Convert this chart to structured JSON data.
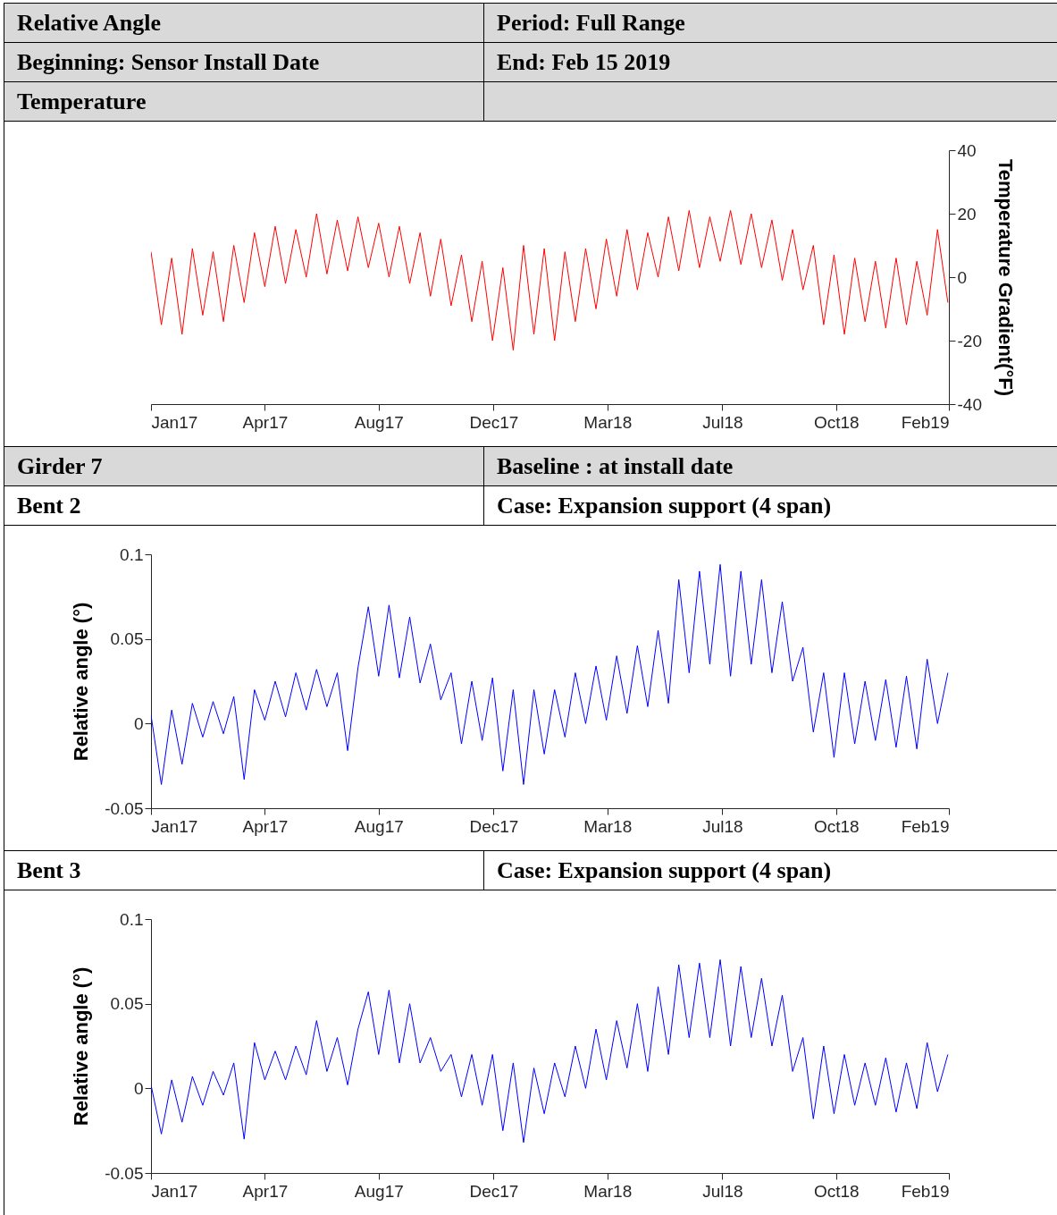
{
  "chart_data": [
    {
      "type": "line",
      "title": "Temperature",
      "annotations": [
        "Relative Angle",
        "Period: Full Range",
        "Beginning: Sensor Install Date",
        "End: Feb 15 2019"
      ],
      "y2label": "Temperature Gradient(°F)",
      "xlim": [
        "2017-01-05",
        "2019-02-15"
      ],
      "xticks": [
        {
          "value": "2017-01-05",
          "label": "Jan17"
        },
        {
          "value": "2017-04-25",
          "label": "Apr17"
        },
        {
          "value": "2017-08-13",
          "label": "Aug17"
        },
        {
          "value": "2017-12-02",
          "label": "Dec17"
        },
        {
          "value": "2018-03-22",
          "label": "Mar18"
        },
        {
          "value": "2018-07-11",
          "label": "Jul18"
        },
        {
          "value": "2018-10-29",
          "label": "Oct18"
        },
        {
          "value": "2019-02-15",
          "label": "Feb19"
        }
      ],
      "y2lim": [
        -40,
        40
      ],
      "y2ticks": [
        -40,
        -20,
        0,
        20,
        40
      ],
      "x": [
        "2017-01-05",
        "2017-01-15",
        "2017-01-25",
        "2017-02-04",
        "2017-02-14",
        "2017-02-24",
        "2017-03-06",
        "2017-03-16",
        "2017-03-26",
        "2017-04-05",
        "2017-04-15",
        "2017-04-25",
        "2017-05-05",
        "2017-05-15",
        "2017-05-25",
        "2017-06-04",
        "2017-06-14",
        "2017-06-24",
        "2017-07-04",
        "2017-07-14",
        "2017-07-24",
        "2017-08-03",
        "2017-08-13",
        "2017-08-23",
        "2017-09-02",
        "2017-09-12",
        "2017-09-22",
        "2017-10-02",
        "2017-10-12",
        "2017-10-22",
        "2017-11-01",
        "2017-11-11",
        "2017-11-21",
        "2017-12-01",
        "2017-12-11",
        "2017-12-21",
        "2017-12-31",
        "2018-01-10",
        "2018-01-20",
        "2018-01-30",
        "2018-02-09",
        "2018-02-19",
        "2018-03-01",
        "2018-03-11",
        "2018-03-21",
        "2018-03-31",
        "2018-04-10",
        "2018-04-20",
        "2018-04-30",
        "2018-05-10",
        "2018-05-20",
        "2018-05-30",
        "2018-06-09",
        "2018-06-19",
        "2018-06-29",
        "2018-07-09",
        "2018-07-19",
        "2018-07-29",
        "2018-08-08",
        "2018-08-18",
        "2018-08-28",
        "2018-09-07",
        "2018-09-17",
        "2018-09-27",
        "2018-10-07",
        "2018-10-17",
        "2018-10-27",
        "2018-11-06",
        "2018-11-16",
        "2018-11-26",
        "2018-12-06",
        "2018-12-16",
        "2018-12-26",
        "2019-01-05",
        "2019-01-15",
        "2019-01-25",
        "2019-02-04",
        "2019-02-14"
      ],
      "series": [
        {
          "color": "#ff0000",
          "axis": "y2",
          "values": [
            8,
            -15,
            6,
            -18,
            9,
            -12,
            8,
            -14,
            10,
            -8,
            14,
            -3,
            16,
            -2,
            15,
            0,
            20,
            1,
            18,
            2,
            19,
            3,
            17,
            0,
            16,
            -2,
            14,
            -6,
            12,
            -9,
            7,
            -14,
            5,
            -20,
            3,
            -23,
            10,
            -18,
            9,
            -20,
            8,
            -14,
            9,
            -10,
            12,
            -6,
            15,
            -4,
            14,
            0,
            19,
            2,
            21,
            3,
            19,
            5,
            21,
            4,
            20,
            3,
            18,
            -1,
            15,
            -4,
            10,
            -15,
            7,
            -18,
            6,
            -14,
            5,
            -16,
            6,
            -15,
            5,
            -12,
            15,
            -8
          ]
        }
      ]
    },
    {
      "type": "line",
      "title": "Bent 2",
      "annotations": [
        "Girder 7",
        "Baseline : at install date",
        "Case: Expansion support (4 span)"
      ],
      "ylabel": "Relative angle (°)",
      "xlim": [
        "2017-01-05",
        "2019-02-15"
      ],
      "xticks": [
        {
          "value": "2017-01-05",
          "label": "Jan17"
        },
        {
          "value": "2017-04-25",
          "label": "Apr17"
        },
        {
          "value": "2017-08-13",
          "label": "Aug17"
        },
        {
          "value": "2017-12-02",
          "label": "Dec17"
        },
        {
          "value": "2018-03-22",
          "label": "Mar18"
        },
        {
          "value": "2018-07-11",
          "label": "Jul18"
        },
        {
          "value": "2018-10-29",
          "label": "Oct18"
        },
        {
          "value": "2019-02-15",
          "label": "Feb19"
        }
      ],
      "ylim": [
        -0.05,
        0.1
      ],
      "yticks": [
        -0.05,
        0,
        0.05,
        0.1
      ],
      "x": [
        "2017-01-05",
        "2017-01-15",
        "2017-01-25",
        "2017-02-04",
        "2017-02-14",
        "2017-02-24",
        "2017-03-06",
        "2017-03-16",
        "2017-03-26",
        "2017-04-05",
        "2017-04-15",
        "2017-04-25",
        "2017-05-05",
        "2017-05-15",
        "2017-05-25",
        "2017-06-04",
        "2017-06-14",
        "2017-06-24",
        "2017-07-04",
        "2017-07-14",
        "2017-07-24",
        "2017-08-03",
        "2017-08-13",
        "2017-08-23",
        "2017-09-02",
        "2017-09-12",
        "2017-09-22",
        "2017-10-02",
        "2017-10-12",
        "2017-10-22",
        "2017-11-01",
        "2017-11-11",
        "2017-11-21",
        "2017-12-01",
        "2017-12-11",
        "2017-12-21",
        "2017-12-31",
        "2018-01-10",
        "2018-01-20",
        "2018-01-30",
        "2018-02-09",
        "2018-02-19",
        "2018-03-01",
        "2018-03-11",
        "2018-03-21",
        "2018-03-31",
        "2018-04-10",
        "2018-04-20",
        "2018-04-30",
        "2018-05-10",
        "2018-05-20",
        "2018-05-30",
        "2018-06-09",
        "2018-06-19",
        "2018-06-29",
        "2018-07-09",
        "2018-07-19",
        "2018-07-29",
        "2018-08-08",
        "2018-08-18",
        "2018-08-28",
        "2018-09-07",
        "2018-09-17",
        "2018-09-27",
        "2018-10-07",
        "2018-10-17",
        "2018-10-27",
        "2018-11-06",
        "2018-11-16",
        "2018-11-26",
        "2018-12-06",
        "2018-12-16",
        "2018-12-26",
        "2019-01-05",
        "2019-01-15",
        "2019-01-25",
        "2019-02-04",
        "2019-02-14"
      ],
      "series": [
        {
          "color": "#0000ff",
          "values": [
            0.005,
            -0.036,
            0.008,
            -0.024,
            0.012,
            -0.008,
            0.013,
            -0.006,
            0.016,
            -0.033,
            0.02,
            0.002,
            0.025,
            0.004,
            0.03,
            0.008,
            0.032,
            0.01,
            0.03,
            -0.016,
            0.033,
            0.069,
            0.028,
            0.07,
            0.027,
            0.063,
            0.024,
            0.047,
            0.014,
            0.03,
            -0.012,
            0.025,
            -0.01,
            0.027,
            -0.028,
            0.02,
            -0.036,
            0.02,
            -0.018,
            0.02,
            -0.008,
            0.03,
            0.0,
            0.034,
            0.002,
            0.04,
            0.006,
            0.046,
            0.01,
            0.055,
            0.012,
            0.085,
            0.03,
            0.09,
            0.035,
            0.094,
            0.028,
            0.09,
            0.035,
            0.085,
            0.03,
            0.072,
            0.025,
            0.045,
            -0.005,
            0.03,
            -0.02,
            0.03,
            -0.012,
            0.025,
            -0.01,
            0.026,
            -0.014,
            0.028,
            -0.015,
            0.038,
            0.0,
            0.03
          ]
        }
      ]
    },
    {
      "type": "line",
      "title": "Bent 3",
      "annotations": [
        "Case: Expansion support (4 span)"
      ],
      "ylabel": "Relative angle (°)",
      "xlim": [
        "2017-01-05",
        "2019-02-15"
      ],
      "xticks": [
        {
          "value": "2017-01-05",
          "label": "Jan17"
        },
        {
          "value": "2017-04-25",
          "label": "Apr17"
        },
        {
          "value": "2017-08-13",
          "label": "Aug17"
        },
        {
          "value": "2017-12-02",
          "label": "Dec17"
        },
        {
          "value": "2018-03-22",
          "label": "Mar18"
        },
        {
          "value": "2018-07-11",
          "label": "Jul18"
        },
        {
          "value": "2018-10-29",
          "label": "Oct18"
        },
        {
          "value": "2019-02-15",
          "label": "Feb19"
        }
      ],
      "ylim": [
        -0.05,
        0.1
      ],
      "yticks": [
        -0.05,
        0,
        0.05,
        0.1
      ],
      "x": [
        "2017-01-05",
        "2017-01-15",
        "2017-01-25",
        "2017-02-04",
        "2017-02-14",
        "2017-02-24",
        "2017-03-06",
        "2017-03-16",
        "2017-03-26",
        "2017-04-05",
        "2017-04-15",
        "2017-04-25",
        "2017-05-05",
        "2017-05-15",
        "2017-05-25",
        "2017-06-04",
        "2017-06-14",
        "2017-06-24",
        "2017-07-04",
        "2017-07-14",
        "2017-07-24",
        "2017-08-03",
        "2017-08-13",
        "2017-08-23",
        "2017-09-02",
        "2017-09-12",
        "2017-09-22",
        "2017-10-02",
        "2017-10-12",
        "2017-10-22",
        "2017-11-01",
        "2017-11-11",
        "2017-11-21",
        "2017-12-01",
        "2017-12-11",
        "2017-12-21",
        "2017-12-31",
        "2018-01-10",
        "2018-01-20",
        "2018-01-30",
        "2018-02-09",
        "2018-02-19",
        "2018-03-01",
        "2018-03-11",
        "2018-03-21",
        "2018-03-31",
        "2018-04-10",
        "2018-04-20",
        "2018-04-30",
        "2018-05-10",
        "2018-05-20",
        "2018-05-30",
        "2018-06-09",
        "2018-06-19",
        "2018-06-29",
        "2018-07-09",
        "2018-07-19",
        "2018-07-29",
        "2018-08-08",
        "2018-08-18",
        "2018-08-28",
        "2018-09-07",
        "2018-09-17",
        "2018-09-27",
        "2018-10-07",
        "2018-10-17",
        "2018-10-27",
        "2018-11-06",
        "2018-11-16",
        "2018-11-26",
        "2018-12-06",
        "2018-12-16",
        "2018-12-26",
        "2019-01-05",
        "2019-01-15",
        "2019-01-25",
        "2019-02-04",
        "2019-02-14"
      ],
      "series": [
        {
          "color": "#0000ff",
          "values": [
            0.002,
            -0.027,
            0.005,
            -0.02,
            0.007,
            -0.01,
            0.01,
            -0.004,
            0.015,
            -0.03,
            0.027,
            0.005,
            0.022,
            0.005,
            0.025,
            0.008,
            0.04,
            0.01,
            0.03,
            0.002,
            0.035,
            0.057,
            0.02,
            0.058,
            0.015,
            0.05,
            0.015,
            0.03,
            0.01,
            0.02,
            -0.005,
            0.02,
            -0.01,
            0.02,
            -0.025,
            0.015,
            -0.032,
            0.012,
            -0.015,
            0.015,
            -0.005,
            0.025,
            0.0,
            0.035,
            0.005,
            0.04,
            0.012,
            0.05,
            0.01,
            0.06,
            0.02,
            0.073,
            0.03,
            0.074,
            0.03,
            0.076,
            0.025,
            0.072,
            0.03,
            0.065,
            0.025,
            0.055,
            0.01,
            0.03,
            -0.018,
            0.025,
            -0.015,
            0.02,
            -0.01,
            0.015,
            -0.01,
            0.018,
            -0.014,
            0.015,
            -0.012,
            0.027,
            -0.002,
            0.02
          ]
        }
      ]
    }
  ]
}
